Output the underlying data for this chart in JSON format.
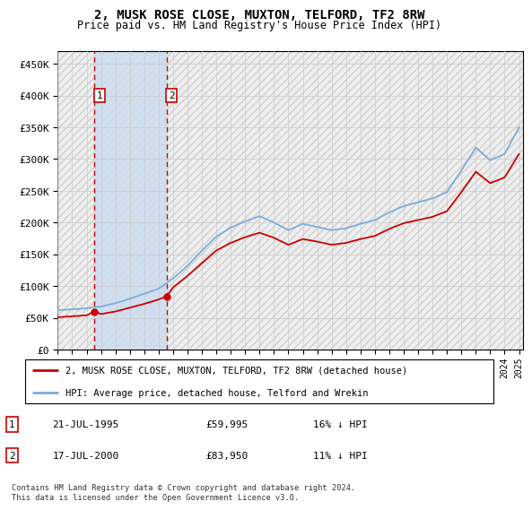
{
  "title": "2, MUSK ROSE CLOSE, MUXTON, TELFORD, TF2 8RW",
  "subtitle": "Price paid vs. HM Land Registry's House Price Index (HPI)",
  "ylim": [
    0,
    470000
  ],
  "yticks": [
    0,
    50000,
    100000,
    150000,
    200000,
    250000,
    300000,
    350000,
    400000,
    450000
  ],
  "sale1_date": 1995.55,
  "sale1_price": 59995,
  "sale2_date": 2000.54,
  "sale2_price": 83950,
  "legend_property": "2, MUSK ROSE CLOSE, MUXTON, TELFORD, TF2 8RW (detached house)",
  "legend_hpi": "HPI: Average price, detached house, Telford and Wrekin",
  "footer": "Contains HM Land Registry data © Crown copyright and database right 2024.\nThis data is licensed under the Open Government Licence v3.0.",
  "property_color": "#cc0000",
  "hpi_color": "#7aaddb",
  "shade_color": "#ccddf0",
  "hpi_years": [
    1993,
    1994,
    1995,
    1996,
    1997,
    1998,
    1999,
    2000,
    2001,
    2002,
    2003,
    2004,
    2005,
    2006,
    2007,
    2008,
    2009,
    2010,
    2011,
    2012,
    2013,
    2014,
    2015,
    2016,
    2017,
    2018,
    2019,
    2020,
    2021,
    2022,
    2023,
    2024,
    2025
  ],
  "hpi_values": [
    62000,
    63500,
    65000,
    68000,
    73000,
    80000,
    88000,
    96000,
    112000,
    132000,
    156000,
    178000,
    192000,
    202000,
    210000,
    200000,
    188000,
    198000,
    193000,
    188000,
    191000,
    198000,
    204000,
    216000,
    226000,
    232000,
    238000,
    248000,
    282000,
    318000,
    298000,
    308000,
    350000
  ],
  "prop_years": [
    1993,
    1994,
    1995,
    1995.55,
    1996,
    1997,
    1998,
    1999,
    2000,
    2000.54,
    2001,
    2002,
    2003,
    2004,
    2005,
    2006,
    2007,
    2008,
    2009,
    2010,
    2011,
    2012,
    2013,
    2014,
    2015,
    2016,
    2017,
    2018,
    2019,
    2020,
    2021,
    2022,
    2023,
    2024,
    2025
  ],
  "prop_values": [
    51000,
    52500,
    54000,
    59995,
    56000,
    60000,
    66000,
    72000,
    79000,
    83950,
    98000,
    116000,
    136000,
    156000,
    168000,
    177000,
    184000,
    176000,
    165000,
    174000,
    170000,
    165000,
    168000,
    174000,
    179000,
    190000,
    199000,
    204000,
    209000,
    218000,
    248000,
    280000,
    262000,
    271000,
    308000
  ],
  "xlim_start": 1993,
  "xlim_end": 2025.3
}
